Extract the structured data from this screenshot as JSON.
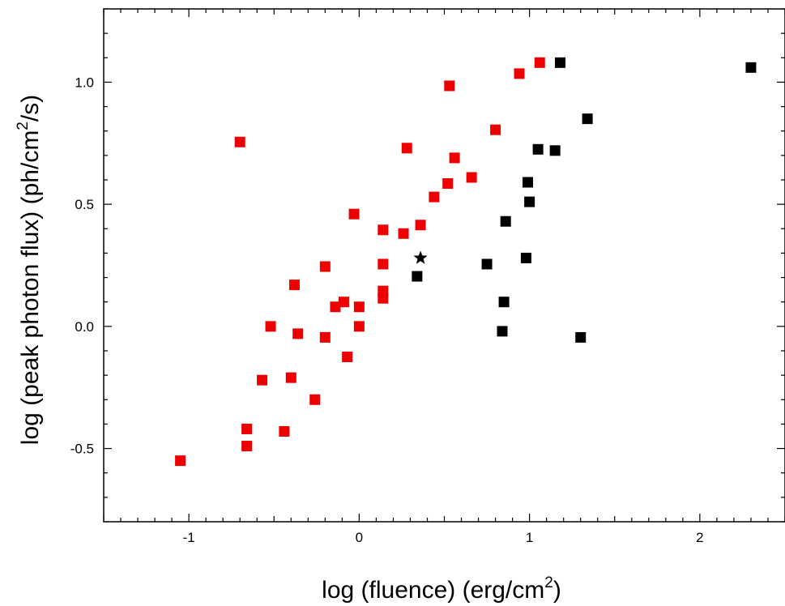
{
  "chart_data": {
    "type": "scatter",
    "xlabel": "log (fluence) (erg/cm²)",
    "xlabel_parts": {
      "pre": "log (fluence) (erg/cm",
      "sup": "2",
      "post": ")"
    },
    "ylabel": "log (peak photon flux) (ph/cm²/s)",
    "ylabel_parts": {
      "pre": "log (peak photon flux) (ph/cm",
      "sup": "2",
      "post": "/s)"
    },
    "xlim": [
      -1.5,
      2.5
    ],
    "ylim": [
      -0.8,
      1.3
    ],
    "x_ticks": [
      -1,
      0,
      1,
      2
    ],
    "x_tick_labels": [
      "-1",
      "0",
      "1",
      "2"
    ],
    "y_ticks": [
      -0.5,
      0.0,
      0.5,
      1.0
    ],
    "y_tick_labels": [
      "-0.5",
      "0.0",
      "0.5",
      "1.0"
    ],
    "grid": false,
    "series": [
      {
        "color": "#ee0000",
        "marker": "square",
        "points": [
          [
            -1.05,
            -0.55
          ],
          [
            -0.7,
            0.755
          ],
          [
            -0.66,
            -0.42
          ],
          [
            -0.66,
            -0.49
          ],
          [
            -0.57,
            -0.22
          ],
          [
            -0.52,
            0.0
          ],
          [
            -0.44,
            -0.43
          ],
          [
            -0.4,
            -0.21
          ],
          [
            -0.38,
            0.17
          ],
          [
            -0.36,
            -0.03
          ],
          [
            -0.26,
            -0.3
          ],
          [
            -0.2,
            0.245
          ],
          [
            -0.2,
            -0.045
          ],
          [
            -0.14,
            0.08
          ],
          [
            -0.09,
            0.1
          ],
          [
            -0.07,
            -0.125
          ],
          [
            -0.03,
            0.46
          ],
          [
            0.0,
            0.08
          ],
          [
            0.0,
            0.0
          ],
          [
            0.14,
            0.395
          ],
          [
            0.14,
            0.255
          ],
          [
            0.14,
            0.145
          ],
          [
            0.14,
            0.115
          ],
          [
            0.26,
            0.38
          ],
          [
            0.28,
            0.73
          ],
          [
            0.36,
            0.415
          ],
          [
            0.44,
            0.53
          ],
          [
            0.52,
            0.585
          ],
          [
            0.53,
            0.985
          ],
          [
            0.56,
            0.69
          ],
          [
            0.66,
            0.61
          ],
          [
            0.8,
            0.805
          ],
          [
            0.94,
            1.035
          ],
          [
            1.06,
            1.08
          ]
        ]
      },
      {
        "color": "#000000",
        "marker": "square",
        "points": [
          [
            0.34,
            0.205
          ],
          [
            0.75,
            0.255
          ],
          [
            0.84,
            -0.02
          ],
          [
            0.85,
            0.1
          ],
          [
            0.86,
            0.43
          ],
          [
            0.98,
            0.28
          ],
          [
            0.99,
            0.59
          ],
          [
            1.0,
            0.51
          ],
          [
            1.05,
            0.725
          ],
          [
            1.15,
            0.72
          ],
          [
            1.18,
            1.08
          ],
          [
            1.3,
            -0.045
          ],
          [
            1.34,
            0.85
          ],
          [
            2.3,
            1.06
          ]
        ]
      },
      {
        "color": "#000000",
        "marker": "star",
        "points": [
          [
            0.36,
            0.28
          ]
        ]
      }
    ]
  }
}
